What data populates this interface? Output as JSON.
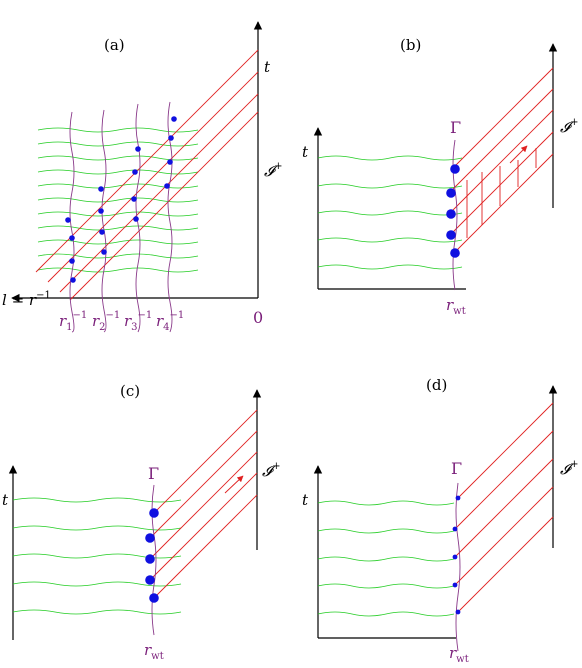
{
  "panels": {
    "a": {
      "label": "(a)",
      "time_label": "t",
      "scri_label": "𝓘",
      "scri_sup": "+",
      "origin_label": "0",
      "l_label": "l = r",
      "l_sup": "−1",
      "r_labels": [
        {
          "base": "r",
          "sub": "1",
          "sup": "−1"
        },
        {
          "base": "r",
          "sub": "2",
          "sup": "−1"
        },
        {
          "base": "r",
          "sub": "3",
          "sup": "−1"
        },
        {
          "base": "r",
          "sub": "4",
          "sup": "−1"
        }
      ]
    },
    "b": {
      "label": "(b)",
      "time_label": "t",
      "gamma": "Γ",
      "r_base": "r",
      "r_sub": "wt",
      "scri_label": "𝓘",
      "scri_sup": "+"
    },
    "c": {
      "label": "(c)",
      "time_label": "t",
      "gamma": "Γ",
      "r_base": "r",
      "r_sub": "wt",
      "scri_label": "𝓘",
      "scri_sup": "+"
    },
    "d": {
      "label": "(d)",
      "time_label": "t",
      "gamma": "Γ",
      "r_base": "r",
      "r_sub": "wt",
      "scri_label": "𝓘",
      "scri_sup": "+"
    }
  },
  "colors": {
    "slices": "#22cc22",
    "characteristics": "#e02020",
    "worldtube": "#8a3a8a",
    "points": "#1010e0",
    "axes": "#000000"
  }
}
